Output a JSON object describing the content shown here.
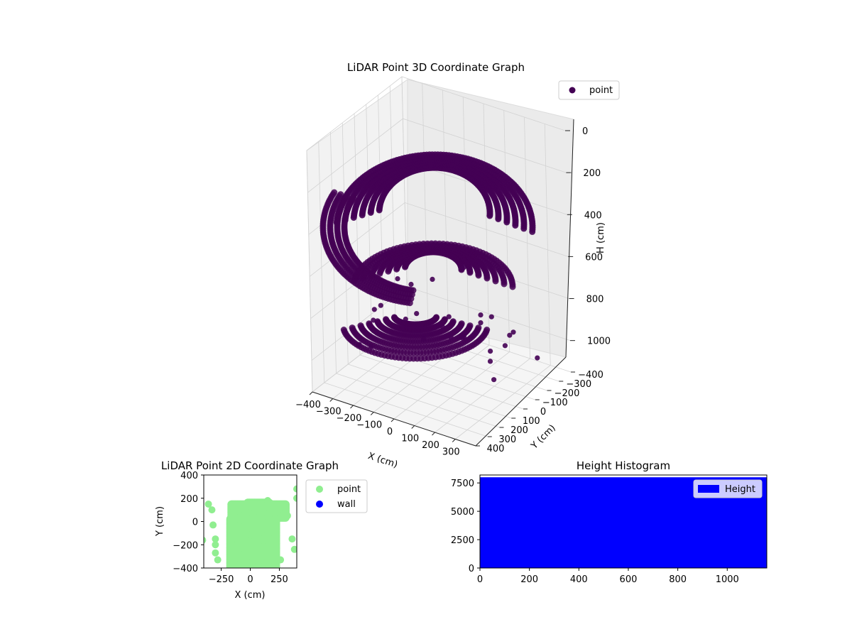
{
  "chart_data": [
    {
      "id": "chart3d",
      "type": "scatter",
      "title": "LiDAR Point 3D Coordinate Graph",
      "xlabel": "X (cm)",
      "ylabel": "Y (cm)",
      "zlabel": "H (cm)",
      "xlim": [
        -400,
        400
      ],
      "ylim": [
        -400,
        400
      ],
      "zlim": [
        1150,
        0
      ],
      "x_ticks": [
        -400,
        -300,
        -200,
        -100,
        0,
        100,
        200,
        300
      ],
      "x_tick_labels": [
        "−400",
        "−300",
        "−200",
        "−100",
        "0",
        "100",
        "200",
        "300"
      ],
      "y_ticks": [
        -400,
        -300,
        -200,
        -100,
        0,
        100,
        200,
        300,
        400
      ],
      "y_tick_labels": [
        "−400",
        "−300",
        "−200",
        "−100",
        "0",
        "100",
        "200",
        "300",
        "400"
      ],
      "z_ticks": [
        0,
        200,
        400,
        600,
        800,
        1000
      ],
      "z_tick_labels": [
        "0",
        "200",
        "400",
        "600",
        "800",
        "1000"
      ],
      "legend": {
        "position": "top-right",
        "entries": [
          {
            "name": "point",
            "color": "#440154"
          }
        ]
      },
      "series": [
        {
          "name": "point",
          "color": "#440154",
          "description_shape": "dense helical/arc point bands",
          "points": [
            [
              -420,
              -30,
              1120
            ],
            [
              -380,
              -60,
              1130
            ],
            [
              -160,
              -340,
              1040
            ],
            [
              -80,
              -220,
              1060
            ],
            [
              150,
              -320,
              1020
            ],
            [
              260,
              -360,
              1110
            ],
            [
              300,
              -100,
              860
            ],
            [
              330,
              120,
              980
            ],
            [
              350,
              180,
              860
            ],
            [
              290,
              60,
              720
            ],
            [
              320,
              200,
              640
            ],
            [
              260,
              230,
              420
            ],
            [
              -300,
              50,
              930
            ],
            [
              -240,
              140,
              820
            ],
            [
              -200,
              10,
              760
            ],
            [
              -120,
              -60,
              1010
            ],
            [
              -60,
              -120,
              960
            ],
            [
              20,
              -160,
              1000
            ],
            [
              80,
              -200,
              930
            ],
            [
              180,
              -230,
              1020
            ],
            [
              -50,
              260,
              560
            ],
            [
              40,
              300,
              540
            ],
            [
              110,
              240,
              520
            ],
            [
              -20,
              160,
              760
            ],
            [
              180,
              120,
              830
            ],
            [
              220,
              -40,
              950
            ],
            [
              -160,
              220,
              740
            ],
            [
              -260,
              -150,
              1000
            ]
          ]
        }
      ]
    },
    {
      "id": "chart2d",
      "type": "scatter",
      "title": "LiDAR Point 2D Coordinate Graph",
      "xlabel": "X (cm)",
      "ylabel": "Y (cm)",
      "xlim": [
        -400,
        400
      ],
      "ylim": [
        -400,
        400
      ],
      "x_ticks": [
        -250,
        0,
        250
      ],
      "x_tick_labels": [
        "−250",
        "0",
        "250"
      ],
      "y_ticks": [
        -400,
        -200,
        0,
        200,
        400
      ],
      "y_tick_labels": [
        "−400",
        "−200",
        "0",
        "200",
        "400"
      ],
      "legend": {
        "position": "outside-right",
        "entries": [
          {
            "name": "point",
            "color": "#90ee90"
          },
          {
            "name": "wall",
            "color": "#0000ff"
          }
        ]
      },
      "series": [
        {
          "name": "point",
          "color": "#90ee90",
          "points": [
            [
              -410,
              -160
            ],
            [
              -360,
              150
            ],
            [
              -330,
              100
            ],
            [
              -320,
              -30
            ],
            [
              -300,
              -150
            ],
            [
              -300,
              -200
            ],
            [
              -300,
              -270
            ],
            [
              -280,
              -330
            ],
            [
              150,
              180
            ],
            [
              360,
              -150
            ],
            [
              380,
              -240
            ],
            [
              400,
              280
            ],
            [
              400,
              200
            ],
            [
              260,
              -330
            ],
            [
              320,
              50
            ]
          ]
        },
        {
          "name": "wall",
          "color": "#0000ff",
          "points": []
        }
      ]
    },
    {
      "id": "hist",
      "type": "bar",
      "title": "Height Histogram",
      "xlim": [
        0,
        1160
      ],
      "ylim": [
        0,
        8200
      ],
      "x_ticks": [
        0,
        200,
        400,
        600,
        800,
        1000
      ],
      "x_tick_labels": [
        "0",
        "200",
        "400",
        "600",
        "800",
        "1000"
      ],
      "y_ticks": [
        0,
        2500,
        5000,
        7500
      ],
      "y_tick_labels": [
        "0",
        "2500",
        "5000",
        "7500"
      ],
      "legend": {
        "position": "top-right",
        "entries": [
          {
            "name": "Height",
            "color": "#0000ff"
          }
        ]
      },
      "series": [
        {
          "name": "Height",
          "color": "#0000ff",
          "bin_range": [
            0,
            1160
          ],
          "value": 8000
        }
      ]
    }
  ]
}
